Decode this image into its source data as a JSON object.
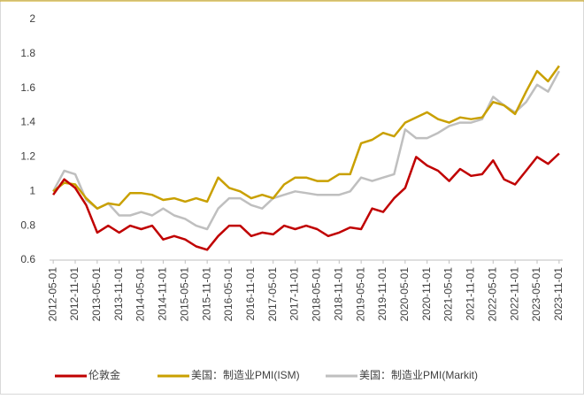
{
  "chart_data": {
    "type": "line",
    "x": [
      "2012-05-01",
      "2012-08-01",
      "2012-11-01",
      "2013-02-01",
      "2013-05-01",
      "2013-08-01",
      "2013-11-01",
      "2014-02-01",
      "2014-05-01",
      "2014-08-01",
      "2014-11-01",
      "2015-02-01",
      "2015-05-01",
      "2015-08-01",
      "2015-11-01",
      "2016-02-01",
      "2016-05-01",
      "2016-08-01",
      "2016-11-01",
      "2017-02-01",
      "2017-05-01",
      "2017-08-01",
      "2017-11-01",
      "2018-02-01",
      "2018-05-01",
      "2018-08-01",
      "2018-11-01",
      "2019-02-01",
      "2019-05-01",
      "2019-08-01",
      "2019-11-01",
      "2020-02-01",
      "2020-05-01",
      "2020-08-01",
      "2020-11-01",
      "2021-02-01",
      "2021-05-01",
      "2021-08-01",
      "2021-11-01",
      "2022-02-01",
      "2022-05-01",
      "2022-08-01",
      "2022-11-01",
      "2023-02-01",
      "2023-05-01",
      "2023-08-01",
      "2023-11-01"
    ],
    "series": [
      {
        "name": "伦敦金",
        "color": "#c00000",
        "values": [
          0.98,
          1.07,
          1.02,
          0.92,
          0.76,
          0.8,
          0.76,
          0.8,
          0.78,
          0.8,
          0.72,
          0.74,
          0.72,
          0.68,
          0.66,
          0.74,
          0.8,
          0.8,
          0.74,
          0.76,
          0.75,
          0.8,
          0.78,
          0.8,
          0.78,
          0.74,
          0.76,
          0.79,
          0.78,
          0.9,
          0.88,
          0.96,
          1.02,
          1.2,
          1.15,
          1.12,
          1.06,
          1.13,
          1.09,
          1.1,
          1.18,
          1.07,
          1.04,
          1.12,
          1.2,
          1.16,
          1.22
        ]
      },
      {
        "name": "美国：制造业PMI(ISM)",
        "color": "#c9a000",
        "values": [
          1.0,
          1.05,
          1.04,
          0.96,
          0.9,
          0.93,
          0.92,
          0.99,
          0.99,
          0.98,
          0.95,
          0.96,
          0.94,
          0.96,
          0.94,
          1.08,
          1.02,
          1.0,
          0.96,
          0.98,
          0.96,
          1.04,
          1.08,
          1.08,
          1.06,
          1.06,
          1.1,
          1.1,
          1.28,
          1.3,
          1.34,
          1.32,
          1.4,
          1.43,
          1.46,
          1.42,
          1.4,
          1.43,
          1.42,
          1.43,
          1.52,
          1.5,
          1.45,
          1.58,
          1.7,
          1.64,
          1.73
        ]
      },
      {
        "name": "美国：制造业PMI(Markit)",
        "color": "#bfbfbf",
        "values": [
          1.0,
          1.12,
          1.1,
          0.95,
          0.9,
          0.93,
          0.86,
          0.86,
          0.88,
          0.86,
          0.9,
          0.86,
          0.84,
          0.8,
          0.78,
          0.9,
          0.96,
          0.96,
          0.92,
          0.9,
          0.96,
          0.98,
          1.0,
          0.99,
          0.98,
          0.98,
          0.98,
          1.0,
          1.08,
          1.06,
          1.08,
          1.1,
          1.36,
          1.31,
          1.31,
          1.34,
          1.38,
          1.4,
          1.4,
          1.42,
          1.55,
          1.5,
          1.46,
          1.52,
          1.62,
          1.58,
          1.7
        ]
      }
    ],
    "xlim": [
      "2012-04-01",
      "2023-12-01"
    ],
    "xticks": [
      "2012-05-01",
      "2012-11-01",
      "2013-05-01",
      "2013-11-01",
      "2014-05-01",
      "2014-11-01",
      "2015-05-01",
      "2015-11-01",
      "2016-05-01",
      "2016-11-01",
      "2017-05-01",
      "2017-11-01",
      "2018-05-01",
      "2018-11-01",
      "2019-05-01",
      "2019-11-01",
      "2020-05-01",
      "2020-11-01",
      "2021-05-01",
      "2021-11-01",
      "2022-05-01",
      "2022-11-01",
      "2023-05-01",
      "2023-11-01"
    ],
    "ylim": [
      0.6,
      2
    ],
    "yticks": [
      0.6,
      0.8,
      1,
      1.2,
      1.4,
      1.6,
      1.8,
      2
    ],
    "legend": "bottom"
  }
}
